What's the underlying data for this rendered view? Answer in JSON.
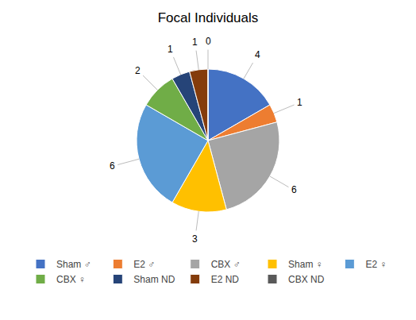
{
  "chart_data": {
    "type": "pie",
    "title": "Focal Individuals",
    "categories": [
      "Sham ♂",
      "E2 ♂",
      "CBX ♂",
      "Sham ♀",
      "E2 ♀",
      "CBX ♀",
      "Sham ND",
      "E2 ND",
      "CBX ND"
    ],
    "values": [
      4,
      1,
      6,
      3,
      6,
      2,
      1,
      1,
      0
    ],
    "colors": [
      "#4472C4",
      "#ED7D31",
      "#A5A5A5",
      "#FFC000",
      "#5B9BD5",
      "#70AD47",
      "#264478",
      "#843C0C",
      "#595959"
    ],
    "data_labels": true,
    "legend": "bottom"
  }
}
